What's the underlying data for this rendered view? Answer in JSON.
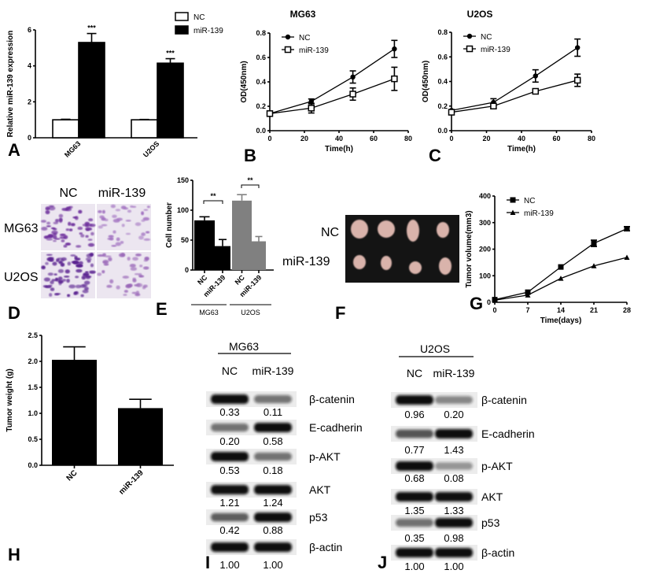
{
  "panel_labels": [
    "A",
    "B",
    "C",
    "D",
    "E",
    "F",
    "G",
    "H",
    "I",
    "J"
  ],
  "chart_data": [
    {
      "id": "A",
      "type": "bar",
      "title": "",
      "xlabel": "",
      "ylabel": "Relative miR-139 expression",
      "ylim": [
        0,
        6
      ],
      "yticks": [
        0,
        2,
        4,
        6
      ],
      "yticklabels": [
        "0",
        "2",
        "4",
        "6"
      ],
      "categories": [
        "MG63",
        "U2OS"
      ],
      "series": [
        {
          "name": "NC",
          "values": [
            1.0,
            1.0
          ],
          "errors": [
            0.03,
            0.02
          ],
          "fill": "#ffffff"
        },
        {
          "name": "miR-139",
          "values": [
            5.3,
            4.15
          ],
          "errors": [
            0.5,
            0.25
          ],
          "fill": "#000000"
        }
      ],
      "annotations": [
        "***",
        "***"
      ],
      "legend": "top-right"
    },
    {
      "id": "B",
      "type": "line",
      "title": "MG63",
      "xlabel": "Time(h)",
      "ylabel": "OD(450nm)",
      "xlim": [
        0,
        80
      ],
      "ylim": [
        0,
        0.8
      ],
      "xticks": [
        0,
        20,
        40,
        60,
        80
      ],
      "xticklabels": [
        "0",
        "20",
        "40",
        "60",
        "80"
      ],
      "yticks": [
        0,
        0.2,
        0.4,
        0.6,
        0.8
      ],
      "yticklabels": [
        "0.0",
        "0.2",
        "0.4",
        "0.6",
        "0.8"
      ],
      "x": [
        0,
        24,
        48,
        72
      ],
      "series": [
        {
          "name": "NC",
          "marker": "circle",
          "values": [
            0.14,
            0.24,
            0.44,
            0.67
          ],
          "errors": [
            0.01,
            0.02,
            0.05,
            0.07
          ]
        },
        {
          "name": "miR-139",
          "marker": "open-square",
          "values": [
            0.14,
            0.185,
            0.3,
            0.425
          ],
          "errors": [
            0.01,
            0.04,
            0.05,
            0.095
          ]
        }
      ],
      "legend": "top-left"
    },
    {
      "id": "C",
      "type": "line",
      "title": "U2OS",
      "xlabel": "Time(h)",
      "ylabel": "OD(450nm)",
      "xlim": [
        0,
        80
      ],
      "ylim": [
        0,
        0.8
      ],
      "xticks": [
        0,
        20,
        40,
        60,
        80
      ],
      "xticklabels": [
        "0",
        "20",
        "40",
        "60",
        "80"
      ],
      "yticks": [
        0,
        0.2,
        0.4,
        0.6,
        0.8
      ],
      "yticklabels": [
        "0.0",
        "0.2",
        "0.4",
        "0.6",
        "0.8"
      ],
      "x": [
        0,
        24,
        48,
        72
      ],
      "series": [
        {
          "name": "NC",
          "marker": "circle",
          "values": [
            0.165,
            0.23,
            0.445,
            0.675
          ],
          "errors": [
            0.01,
            0.03,
            0.05,
            0.07
          ]
        },
        {
          "name": "miR-139",
          "marker": "open-square",
          "values": [
            0.15,
            0.2,
            0.32,
            0.41
          ],
          "errors": [
            0.01,
            0.015,
            0.02,
            0.05
          ]
        }
      ],
      "legend": "top-left"
    },
    {
      "id": "E",
      "type": "bar",
      "title": "",
      "xlabel": "",
      "ylabel": "Cell number",
      "ylim": [
        0,
        150
      ],
      "yticks": [
        0,
        50,
        100,
        150
      ],
      "yticklabels": [
        "0",
        "50",
        "100",
        "150"
      ],
      "categories": [
        "NC",
        "miR-139",
        "NC",
        "miR-139"
      ],
      "values": [
        83,
        40,
        116,
        48
      ],
      "errors": [
        6,
        11,
        10,
        8
      ],
      "fills": [
        "#000000",
        "#000000",
        "#808080",
        "#808080"
      ],
      "groups": [
        "MG63",
        "U2OS"
      ],
      "annotations": [
        "**",
        "**"
      ]
    },
    {
      "id": "G",
      "type": "line",
      "title": "",
      "xlabel": "Time(days)",
      "ylabel": "Tumor volume(mm3)",
      "xlim": [
        0,
        28
      ],
      "ylim": [
        0,
        400
      ],
      "xticks": [
        0,
        7,
        14,
        21,
        28
      ],
      "xticklabels": [
        "0",
        "7",
        "14",
        "21",
        "28"
      ],
      "yticks": [
        0,
        100,
        200,
        300,
        400
      ],
      "yticklabels": [
        "0",
        "100",
        "200",
        "300",
        "400"
      ],
      "x": [
        0,
        7,
        14,
        21,
        28
      ],
      "series": [
        {
          "name": "NC",
          "marker": "square",
          "values": [
            10,
            38,
            133,
            222,
            277
          ],
          "errors": [
            3,
            4,
            5,
            12,
            8
          ]
        },
        {
          "name": "miR-139",
          "marker": "triangle",
          "values": [
            8,
            27,
            90,
            137,
            169
          ],
          "errors": [
            2,
            3,
            3,
            3,
            3
          ]
        }
      ],
      "legend": "top-left"
    },
    {
      "id": "H",
      "type": "bar",
      "title": "",
      "xlabel": "",
      "ylabel": "Tumor weight (g)",
      "ylim": [
        0,
        2.5
      ],
      "yticks": [
        0,
        0.5,
        1,
        1.5,
        2,
        2.5
      ],
      "yticklabels": [
        "0.0",
        "0.5",
        "1.0",
        "1.5",
        "2.0",
        "2.5"
      ],
      "categories": [
        "NC",
        "miR-139"
      ],
      "values": [
        2.03,
        1.1
      ],
      "errors": [
        0.25,
        0.17
      ],
      "fills": [
        "#000000",
        "#000000"
      ]
    }
  ],
  "panel_d": {
    "columns": [
      "NC",
      "miR-139"
    ],
    "rows": [
      "MG63",
      "U2OS"
    ]
  },
  "panel_f": {
    "rows": [
      "NC",
      "miR-139"
    ]
  },
  "blots": [
    {
      "panel": "I",
      "title": "MG63",
      "columns": [
        "NC",
        "miR-139"
      ],
      "rows": [
        {
          "protein": "β-catenin",
          "values": [
            "0.33",
            "0.11"
          ]
        },
        {
          "protein": "E-cadherin",
          "values": [
            "0.20",
            "0.58"
          ]
        },
        {
          "protein": "p-AKT",
          "values": [
            "0.53",
            "0.18"
          ]
        },
        {
          "protein": "AKT",
          "values": [
            "1.21",
            "1.24"
          ]
        },
        {
          "protein": "p53",
          "values": [
            "0.42",
            "0.88"
          ]
        },
        {
          "protein": "β-actin",
          "values": [
            "1.00",
            "1.00"
          ]
        }
      ]
    },
    {
      "panel": "J",
      "title": "U2OS",
      "columns": [
        "NC",
        "miR-139"
      ],
      "rows": [
        {
          "protein": "β-catenin",
          "values": [
            "0.96",
            "0.20"
          ]
        },
        {
          "protein": "E-cadherin",
          "values": [
            "0.77",
            "1.43"
          ]
        },
        {
          "protein": "p-AKT",
          "values": [
            "0.68",
            "0.08"
          ]
        },
        {
          "protein": "AKT",
          "values": [
            "1.35",
            "1.33"
          ]
        },
        {
          "protein": "p53",
          "values": [
            "0.35",
            "0.98"
          ]
        },
        {
          "protein": "β-actin",
          "values": [
            "1.00",
            "1.00"
          ]
        }
      ]
    }
  ]
}
